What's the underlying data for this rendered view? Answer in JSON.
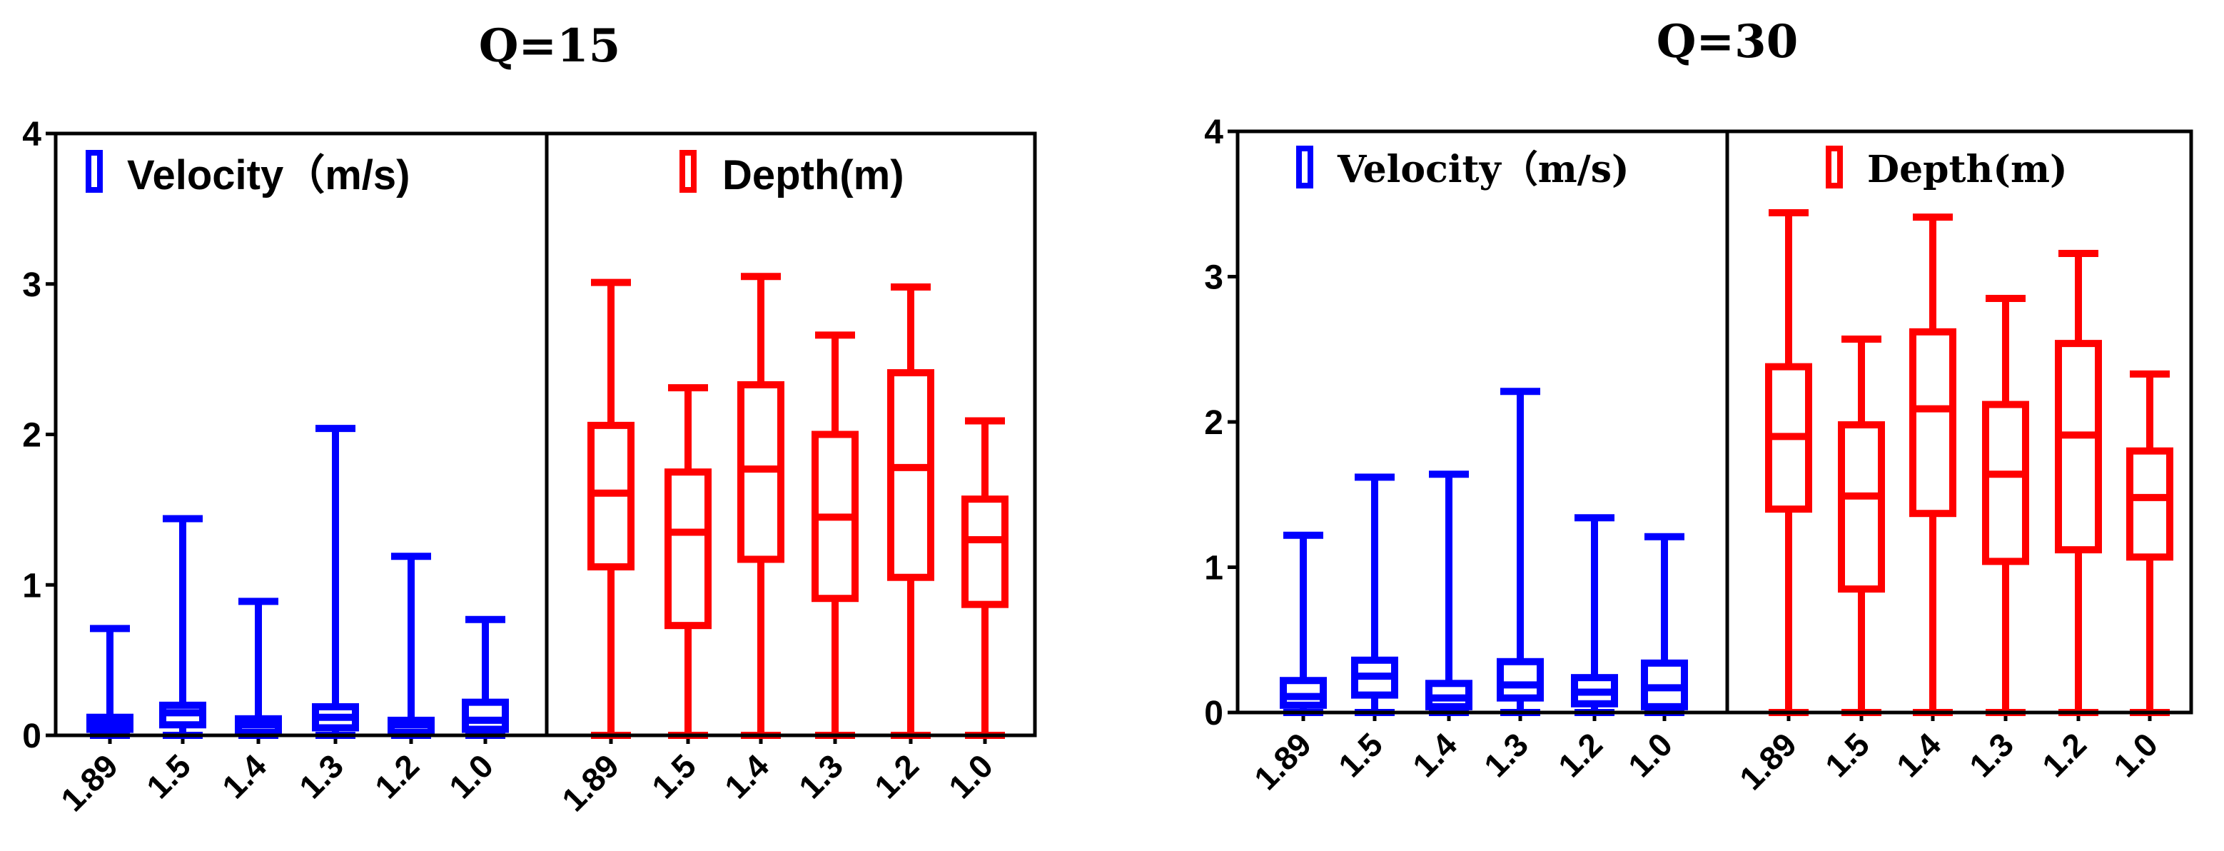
{
  "chart_data": [
    {
      "type": "boxplot",
      "title": "Q=15",
      "ylim": [
        0,
        4
      ],
      "yticks": [
        "0",
        "1",
        "2",
        "3",
        "4"
      ],
      "categories": [
        "1.89",
        "1.5",
        "1.4",
        "1.3",
        "1.2",
        "1.0"
      ],
      "legend_font": "sans",
      "series": [
        {
          "name": "Velocity（m/s)",
          "color": "#0000ff",
          "boxes": [
            {
              "min": 0.0,
              "q1": 0.04,
              "median": 0.08,
              "q3": 0.12,
              "max": 0.71
            },
            {
              "min": 0.0,
              "q1": 0.07,
              "median": 0.15,
              "q3": 0.2,
              "max": 1.44
            },
            {
              "min": 0.0,
              "q1": 0.02,
              "median": 0.07,
              "q3": 0.11,
              "max": 0.89
            },
            {
              "min": 0.0,
              "q1": 0.05,
              "median": 0.12,
              "q3": 0.19,
              "max": 2.04
            },
            {
              "min": 0.0,
              "q1": 0.02,
              "median": 0.07,
              "q3": 0.1,
              "max": 1.19
            },
            {
              "min": 0.0,
              "q1": 0.04,
              "median": 0.1,
              "q3": 0.22,
              "max": 0.77
            }
          ]
        },
        {
          "name": "Depth(m)",
          "color": "#ff0000",
          "boxes": [
            {
              "min": 0.0,
              "q1": 1.12,
              "median": 1.61,
              "q3": 2.06,
              "max": 3.01
            },
            {
              "min": 0.0,
              "q1": 0.73,
              "median": 1.35,
              "q3": 1.75,
              "max": 2.31
            },
            {
              "min": 0.0,
              "q1": 1.17,
              "median": 1.77,
              "q3": 2.33,
              "max": 3.05
            },
            {
              "min": 0.0,
              "q1": 0.91,
              "median": 1.45,
              "q3": 2.0,
              "max": 2.66
            },
            {
              "min": 0.0,
              "q1": 1.05,
              "median": 1.78,
              "q3": 2.41,
              "max": 2.98
            },
            {
              "min": 0.0,
              "q1": 0.87,
              "median": 1.3,
              "q3": 1.57,
              "max": 2.09
            }
          ]
        }
      ]
    },
    {
      "type": "boxplot",
      "title": "Q=30",
      "ylim": [
        0,
        4
      ],
      "yticks": [
        "0",
        "1",
        "2",
        "3",
        "4"
      ],
      "categories": [
        "1.89",
        "1.5",
        "1.4",
        "1.3",
        "1.2",
        "1.0"
      ],
      "legend_font": "serif",
      "series": [
        {
          "name": "Velocity（m/s)",
          "color": "#0000ff",
          "boxes": [
            {
              "min": 0.0,
              "q1": 0.05,
              "median": 0.11,
              "q3": 0.22,
              "max": 1.22
            },
            {
              "min": 0.0,
              "q1": 0.12,
              "median": 0.25,
              "q3": 0.36,
              "max": 1.62
            },
            {
              "min": 0.0,
              "q1": 0.04,
              "median": 0.1,
              "q3": 0.2,
              "max": 1.64
            },
            {
              "min": 0.0,
              "q1": 0.1,
              "median": 0.19,
              "q3": 0.35,
              "max": 2.21
            },
            {
              "min": 0.0,
              "q1": 0.06,
              "median": 0.14,
              "q3": 0.24,
              "max": 1.34
            },
            {
              "min": 0.0,
              "q1": 0.04,
              "median": 0.17,
              "q3": 0.34,
              "max": 1.21
            }
          ]
        },
        {
          "name": "Depth(m)",
          "color": "#ff0000",
          "boxes": [
            {
              "min": 0.0,
              "q1": 1.4,
              "median": 1.9,
              "q3": 2.38,
              "max": 3.44
            },
            {
              "min": 0.0,
              "q1": 0.85,
              "median": 1.49,
              "q3": 1.98,
              "max": 2.57
            },
            {
              "min": 0.0,
              "q1": 1.37,
              "median": 2.09,
              "q3": 2.62,
              "max": 3.41
            },
            {
              "min": 0.0,
              "q1": 1.04,
              "median": 1.64,
              "q3": 2.12,
              "max": 2.85
            },
            {
              "min": 0.0,
              "q1": 1.12,
              "median": 1.91,
              "q3": 2.54,
              "max": 3.16
            },
            {
              "min": 0.0,
              "q1": 1.07,
              "median": 1.48,
              "q3": 1.8,
              "max": 2.33
            }
          ]
        }
      ]
    }
  ]
}
